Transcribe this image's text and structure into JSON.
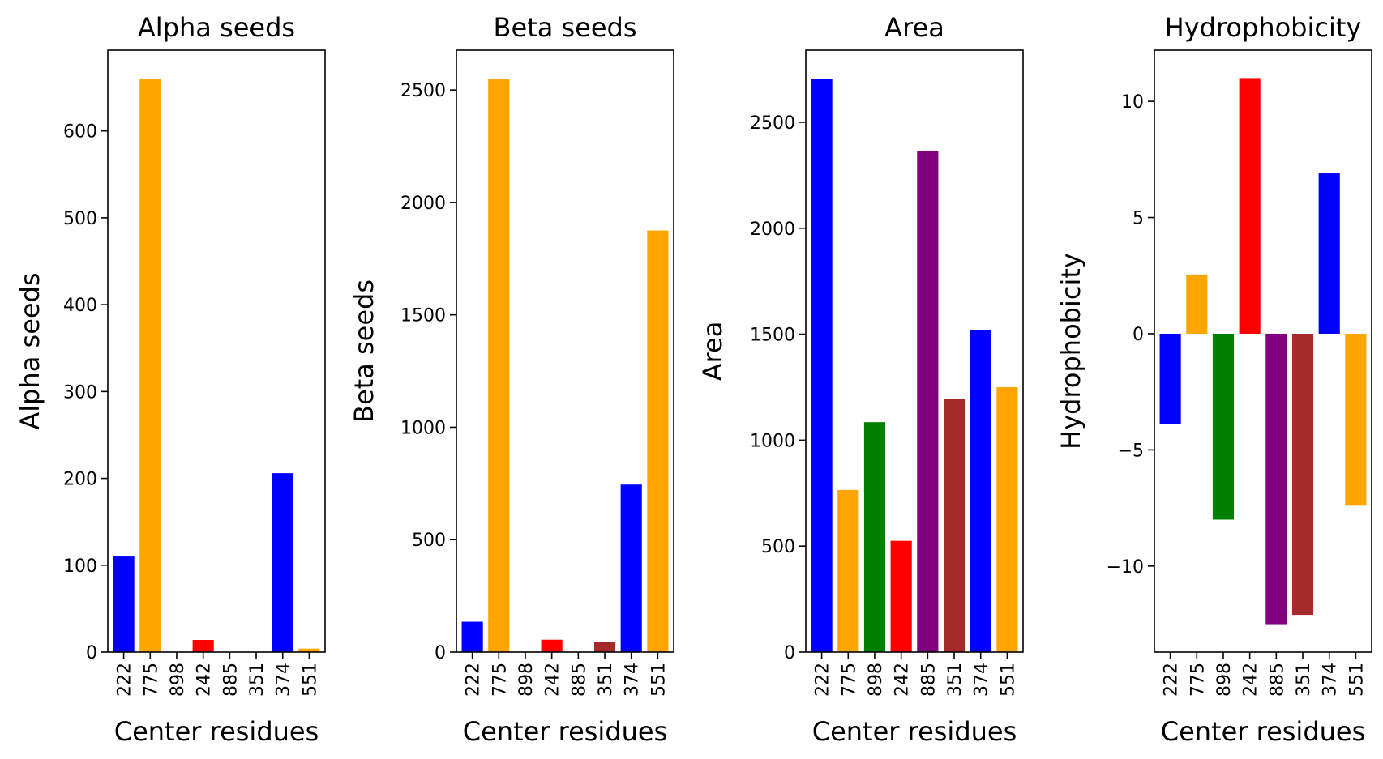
{
  "chart_data": [
    {
      "type": "bar",
      "title": "Alpha seeds",
      "xlabel": "Center residues",
      "ylabel": "Alpha seeds",
      "categories": [
        "222",
        "775",
        "898",
        "242",
        "885",
        "351",
        "374",
        "551"
      ],
      "values": [
        110,
        660,
        0,
        14,
        0,
        0,
        206,
        4
      ],
      "colors": [
        "#0000ff",
        "#ffa500",
        "#008000",
        "#ff0000",
        "#800080",
        "#a52a2a",
        "#0000ff",
        "#ffa500"
      ],
      "ylim": [
        0,
        693
      ],
      "yticks": [
        0,
        100,
        200,
        300,
        400,
        500,
        600
      ],
      "ytick_labels": [
        "0",
        "100",
        "200",
        "300",
        "400",
        "500",
        "600"
      ]
    },
    {
      "type": "bar",
      "title": "Beta seeds",
      "xlabel": "Center residues",
      "ylabel": "Beta seeds",
      "categories": [
        "222",
        "775",
        "898",
        "242",
        "885",
        "351",
        "374",
        "551"
      ],
      "values": [
        135,
        2550,
        0,
        55,
        0,
        45,
        745,
        1875
      ],
      "colors": [
        "#0000ff",
        "#ffa500",
        "#008000",
        "#ff0000",
        "#800080",
        "#a52a2a",
        "#0000ff",
        "#ffa500"
      ],
      "ylim": [
        0,
        2677
      ],
      "yticks": [
        0,
        500,
        1000,
        1500,
        2000,
        2500
      ],
      "ytick_labels": [
        "0",
        "500",
        "1000",
        "1500",
        "2000",
        "2500"
      ]
    },
    {
      "type": "bar",
      "title": "Area",
      "xlabel": "Center residues",
      "ylabel": "Area",
      "categories": [
        "222",
        "775",
        "898",
        "242",
        "885",
        "351",
        "374",
        "551"
      ],
      "values": [
        2705,
        765,
        1085,
        525,
        2365,
        1195,
        1520,
        1250
      ],
      "colors": [
        "#0000ff",
        "#ffa500",
        "#008000",
        "#ff0000",
        "#800080",
        "#a52a2a",
        "#0000ff",
        "#ffa500"
      ],
      "ylim": [
        0,
        2840
      ],
      "yticks": [
        0,
        500,
        1000,
        1500,
        2000,
        2500
      ],
      "ytick_labels": [
        "0",
        "500",
        "1000",
        "1500",
        "2000",
        "2500"
      ]
    },
    {
      "type": "bar",
      "title": "Hydrophobicity",
      "xlabel": "Center residues",
      "ylabel": "Hydrophobicity",
      "categories": [
        "222",
        "775",
        "898",
        "242",
        "885",
        "351",
        "374",
        "551"
      ],
      "values": [
        -3.9,
        2.55,
        -8.0,
        11.0,
        -12.5,
        -12.1,
        6.9,
        -7.4
      ],
      "colors": [
        "#0000ff",
        "#ffa500",
        "#008000",
        "#ff0000",
        "#800080",
        "#a52a2a",
        "#0000ff",
        "#ffa500"
      ],
      "ylim": [
        -13.7,
        12.2
      ],
      "yticks": [
        -10,
        -5,
        0,
        5,
        10
      ],
      "ytick_labels": [
        "−10",
        "−5",
        "0",
        "5",
        "10"
      ]
    }
  ]
}
